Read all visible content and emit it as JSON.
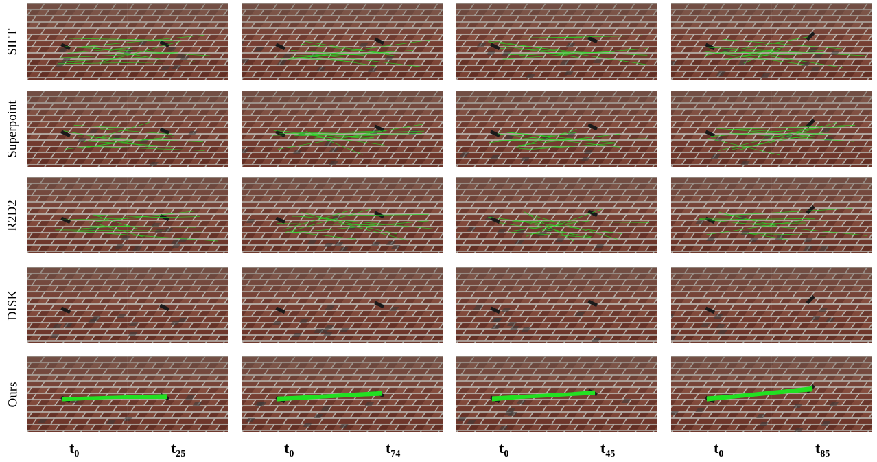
{
  "figure": {
    "rows": [
      {
        "label": "SIFT",
        "match_style": "sparse"
      },
      {
        "label": "Superpoint",
        "match_style": "sparse"
      },
      {
        "label": "R2D2",
        "match_style": "sparse"
      },
      {
        "label": "DISK",
        "match_style": "none"
      },
      {
        "label": "Ours",
        "match_style": "dense"
      }
    ],
    "columns": [
      {
        "t_left": "t",
        "t_left_sub": "0",
        "t_right": "t",
        "t_right_sub": "25"
      },
      {
        "t_left": "t",
        "t_left_sub": "0",
        "t_right": "t",
        "t_right_sub": "74"
      },
      {
        "t_left": "t",
        "t_left_sub": "0",
        "t_right": "t",
        "t_right_sub": "45"
      },
      {
        "t_left": "t",
        "t_left_sub": "0",
        "t_right": "t",
        "t_right_sub": "85"
      }
    ],
    "colors": {
      "match_line": "#22e022",
      "brick": "#7a3b2e",
      "mortar": "#c9c2bb",
      "object": "#1a1a1a"
    }
  }
}
